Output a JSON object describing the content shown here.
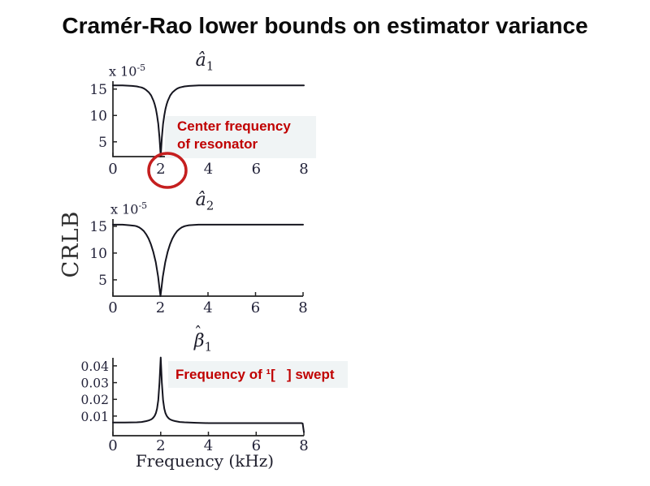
{
  "slide": {
    "title": "Cramér-Rao lower bounds on estimator variance"
  },
  "ylabel_global": "CRLB",
  "xlabel": "Frequency (kHz)",
  "annotations": {
    "center_freq": {
      "line1": "Center frequency",
      "line2": "of resonator"
    },
    "swept": {
      "text": "Frequency of ¹[   ] swept"
    }
  },
  "colors": {
    "accent_red": "#c00000",
    "circle_red": "#c51f1f",
    "curve": "#15151f",
    "axis": "#222222",
    "annotation_bg": "#f0f4f5"
  },
  "chart_data": [
    {
      "id": "a1-hat",
      "type": "line",
      "title": {
        "hat": "",
        "base": "â",
        "sub": "1"
      },
      "y_exponent": {
        "mantissa": "x 10",
        "exp": "-5"
      },
      "xlim": [
        0,
        8
      ],
      "ylim": [
        2.2,
        16.5
      ],
      "xticks": [
        0,
        2,
        4,
        6,
        8
      ],
      "xtick_labels": [
        "0",
        "2",
        "4",
        "6",
        "8"
      ],
      "yticks": [
        5,
        10,
        15
      ],
      "ytick_labels": [
        "5",
        "10",
        "15"
      ],
      "grid": false,
      "x": [
        0,
        0.4,
        0.8,
        1.0,
        1.1,
        1.2,
        1.3,
        1.4,
        1.5,
        1.6,
        1.7,
        1.75,
        1.8,
        1.85,
        1.9,
        1.95,
        2.0,
        2.05,
        2.1,
        2.15,
        2.2,
        2.25,
        2.3,
        2.4,
        2.5,
        2.6,
        2.7,
        2.8,
        3.0,
        3.2,
        3.6,
        4.0,
        5.0,
        6.0,
        7.0,
        8.0
      ],
      "y": [
        15.7,
        15.7,
        15.6,
        15.5,
        15.4,
        15.3,
        15.1,
        14.8,
        14.4,
        13.8,
        12.8,
        12.1,
        11.2,
        10.0,
        8.4,
        5.8,
        2.2,
        5.8,
        8.4,
        10.0,
        11.2,
        12.1,
        12.8,
        13.8,
        14.4,
        14.8,
        15.1,
        15.3,
        15.5,
        15.6,
        15.7,
        15.7,
        15.7,
        15.7,
        15.7,
        15.7
      ]
    },
    {
      "id": "a2-hat",
      "type": "line",
      "title": {
        "hat": "",
        "base": "â",
        "sub": "2"
      },
      "y_exponent": {
        "mantissa": "x 10",
        "exp": "-5"
      },
      "xlim": [
        0,
        8
      ],
      "ylim": [
        1.95,
        16.35
      ],
      "xticks": [
        0,
        2,
        4,
        6,
        8
      ],
      "xtick_labels": [
        "0",
        "2",
        "4",
        "6",
        "8"
      ],
      "yticks": [
        5,
        10,
        15
      ],
      "ytick_labels": [
        "5",
        "10",
        "15"
      ],
      "grid": false,
      "x": [
        0,
        0.4,
        0.7,
        0.9,
        1.0,
        1.1,
        1.2,
        1.3,
        1.4,
        1.5,
        1.6,
        1.7,
        1.8,
        1.9,
        1.95,
        2.0,
        2.05,
        2.1,
        2.2,
        2.3,
        2.4,
        2.5,
        2.6,
        2.7,
        2.8,
        2.9,
        3.0,
        3.1,
        3.2,
        3.4,
        3.6,
        4.0,
        5.0,
        6.0,
        7.0,
        8.0
      ],
      "y": [
        15.3,
        15.3,
        15.2,
        15.1,
        15.0,
        14.8,
        14.5,
        14.1,
        13.5,
        12.7,
        11.6,
        10.2,
        8.3,
        5.6,
        3.8,
        1.95,
        3.8,
        5.6,
        8.3,
        10.2,
        11.6,
        12.7,
        13.5,
        14.1,
        14.5,
        14.8,
        15.0,
        15.1,
        15.2,
        15.25,
        15.3,
        15.3,
        15.3,
        15.3,
        15.3,
        15.3
      ]
    },
    {
      "id": "beta1-hat",
      "type": "line",
      "title": {
        "hat": "ˆ",
        "base": "β",
        "sub": "1"
      },
      "xlim": [
        0,
        8
      ],
      "ylim": [
        -0.0017,
        0.0448
      ],
      "xticks": [
        0,
        2,
        4,
        6,
        8
      ],
      "xtick_labels": [
        "0",
        "2",
        "4",
        "6",
        "8"
      ],
      "yticks": [
        0.01,
        0.02,
        0.03,
        0.04
      ],
      "ytick_labels": [
        "0.01",
        "0.02",
        "0.03",
        "0.04"
      ],
      "grid": false,
      "x": [
        0,
        0.5,
        1.0,
        1.2,
        1.4,
        1.5,
        1.6,
        1.65,
        1.7,
        1.75,
        1.8,
        1.85,
        1.9,
        1.95,
        2.0,
        2.05,
        2.1,
        2.15,
        2.2,
        2.25,
        2.3,
        2.35,
        2.4,
        2.5,
        2.6,
        2.8,
        3.0,
        3.5,
        4.0,
        5.0,
        6.0,
        7.0,
        7.9,
        7.95,
        8.0
      ],
      "y": [
        0.0062,
        0.0062,
        0.0063,
        0.0065,
        0.007,
        0.0074,
        0.008,
        0.0085,
        0.0092,
        0.0102,
        0.0118,
        0.0145,
        0.0195,
        0.03,
        0.045,
        0.03,
        0.0195,
        0.0145,
        0.0118,
        0.0102,
        0.0092,
        0.0085,
        0.008,
        0.0074,
        0.007,
        0.0065,
        0.0063,
        0.006,
        0.0058,
        0.0058,
        0.0058,
        0.0058,
        0.0058,
        0.0056,
        0.0005
      ]
    }
  ]
}
